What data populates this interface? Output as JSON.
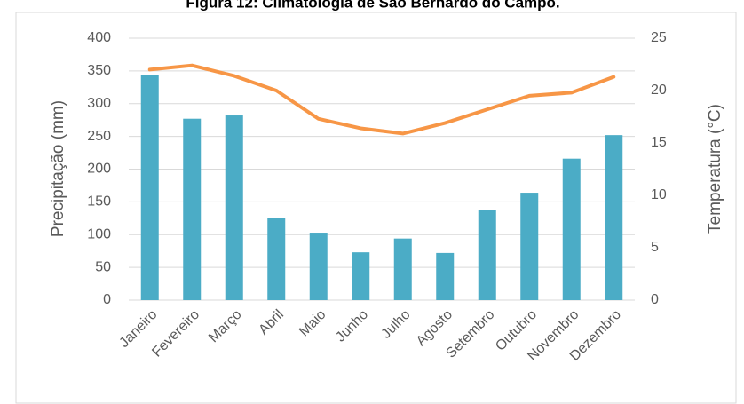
{
  "chart_data": {
    "type": "bar_line",
    "title": "Figura 12: Climatologia de São Bernardo do Campo.",
    "y_label": "Precipitação (mm)",
    "y2_label": "Temperatura (°C)",
    "categories": [
      "Janeiro",
      "Fevereiro",
      "Março",
      "Abril",
      "Maio",
      "Junho",
      "Julho",
      "Agosto",
      "Setembro",
      "Outubro",
      "Novembro",
      "Dezembro"
    ],
    "series": [
      {
        "type": "bar",
        "color": "#4bacc6",
        "values": [
          344,
          277,
          282,
          126,
          103,
          73,
          94,
          72,
          137,
          164,
          216,
          252
        ]
      },
      {
        "type": "line",
        "axis": "y2",
        "color": "#f79646",
        "values": [
          22.0,
          22.4,
          21.4,
          20.0,
          17.3,
          16.4,
          15.9,
          16.9,
          18.2,
          19.5,
          19.8,
          21.3
        ]
      }
    ],
    "ylim": [
      0,
      400
    ],
    "yticks": [
      0,
      50,
      100,
      150,
      200,
      250,
      300,
      350,
      400
    ],
    "y2lim": [
      0,
      25
    ],
    "y2ticks": [
      0,
      5,
      10,
      15,
      20,
      25
    ],
    "grid": true
  }
}
